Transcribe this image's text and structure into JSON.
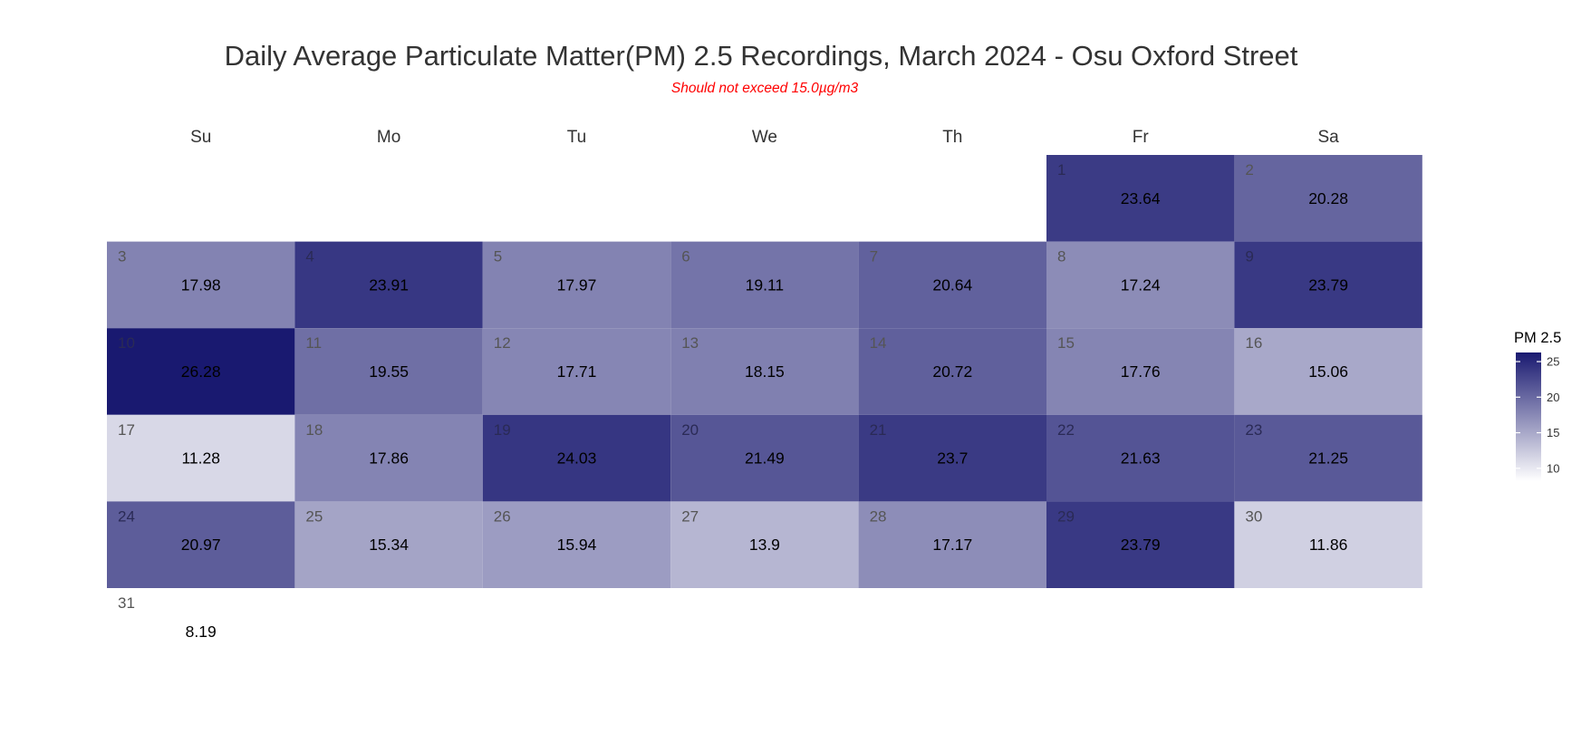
{
  "chart_data": {
    "type": "heatmap",
    "title": "Daily Average Particulate Matter(PM) 2.5 Recordings, March 2024 - Osu Oxford Street",
    "subtitle": "Should not exceed 15.0µg/m3",
    "weekdays": [
      "Su",
      "Mo",
      "Tu",
      "We",
      "Th",
      "Fr",
      "Sa"
    ],
    "month": "March 2024",
    "first_weekday_index": 5,
    "days": [
      1,
      2,
      3,
      4,
      5,
      6,
      7,
      8,
      9,
      10,
      11,
      12,
      13,
      14,
      15,
      16,
      17,
      18,
      19,
      20,
      21,
      22,
      23,
      24,
      25,
      26,
      27,
      28,
      29,
      30,
      31
    ],
    "values": [
      23.64,
      20.28,
      17.98,
      23.91,
      17.97,
      19.11,
      20.64,
      17.24,
      23.79,
      26.28,
      19.55,
      17.71,
      18.15,
      20.72,
      17.76,
      15.06,
      11.28,
      17.86,
      24.03,
      21.49,
      23.7,
      21.63,
      21.25,
      20.97,
      15.34,
      15.94,
      13.9,
      17.17,
      23.79,
      11.86,
      8.19
    ],
    "value_labels": [
      "23.64",
      "20.28",
      "17.98",
      "23.91",
      "17.97",
      "19.11",
      "20.64",
      "17.24",
      "23.79",
      "26.28",
      "19.55",
      "17.71",
      "18.15",
      "20.72",
      "17.76",
      "15.06",
      "11.28",
      "17.86",
      "24.03",
      "21.49",
      "23.7",
      "21.63",
      "21.25",
      "20.97",
      "15.34",
      "15.94",
      "13.9",
      "17.17",
      "23.79",
      "11.86",
      "8.19"
    ],
    "color_scale": {
      "low": "#ffffff",
      "high": "#191970",
      "min": 8.19,
      "max": 26.28
    },
    "legend": {
      "title": "PM 2.5",
      "ticks": [
        10,
        15,
        20,
        25
      ],
      "position": "right"
    }
  }
}
